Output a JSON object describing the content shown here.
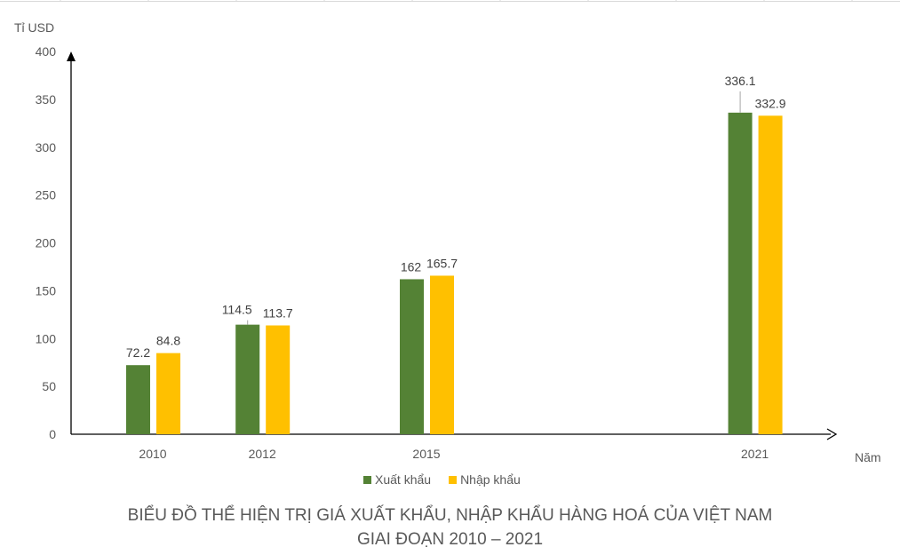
{
  "chart_data": {
    "type": "bar",
    "title": [
      "BIỂU ĐỒ THỂ HIỆN TRỊ GIÁ XUẤT KHẨU, NHẬP KHẨU HÀNG HOÁ CỦA VIỆT NAM",
      "GIAI ĐOẠN 2010 – 2021"
    ],
    "xlabel": "Năm",
    "ylabel": "Tỉ USD",
    "ylim": [
      0,
      400
    ],
    "yticks": [
      0,
      50,
      100,
      150,
      200,
      250,
      300,
      350,
      400
    ],
    "categories": [
      "2010",
      "2012",
      "2015",
      "2021"
    ],
    "series": [
      {
        "name": "Xuất khẩu",
        "color": "#548235",
        "values": [
          72.2,
          114.5,
          162,
          336.1
        ],
        "labels": [
          "72.2",
          "114.5",
          "162",
          "336.1"
        ]
      },
      {
        "name": "Nhập khẩu",
        "color": "#FFC000",
        "values": [
          84.8,
          113.7,
          165.7,
          332.9
        ],
        "labels": [
          "84.8",
          "113.7",
          "165.7",
          "332.9"
        ]
      }
    ],
    "legend": "bottom",
    "grid": false
  }
}
